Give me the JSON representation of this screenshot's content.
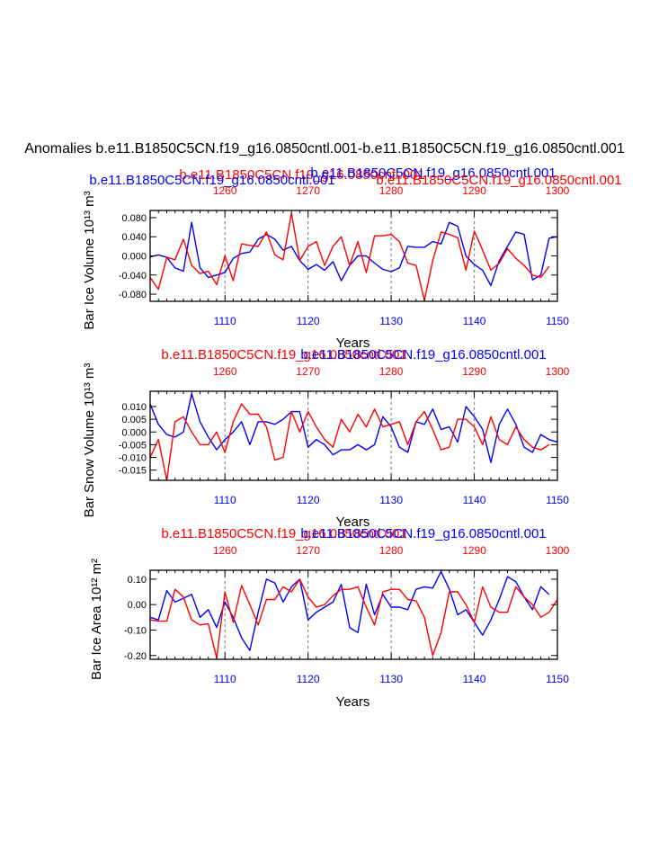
{
  "figure": {
    "title": "Anomalies b.e11.B1850C5CN.f19_g16.0850cntl.001-b.e11.B1850C5CN.f19_g16.0850cntl.001",
    "colors": {
      "blue": "#0000ff",
      "red": "#ff0000",
      "text": "#000000",
      "grid": "#888888"
    }
  },
  "chart_data": [
    {
      "type": "line",
      "title_blue": "b.e11.B1850C5CN.f19_g16.0850cntl.001",
      "title_red": "b.e11.B1850C5CN.f19_g16.0850cntl.001",
      "title_red_2": "b.e11.B1850C5CN.f19_g16.0850cntl.001",
      "overlap_red": "b.e11.B1850C5CN.f19_g16.0850cntl.001",
      "overlap_blue": "b.e11.B1850C5CN.f19_g16.0850cntl.001",
      "ylabel": "Bar Ice Volume 10¹³ m³",
      "xlabel": "Years",
      "ylim": [
        -0.095,
        0.095
      ],
      "yticks": [
        -0.08,
        -0.04,
        0.0,
        0.04,
        0.08
      ],
      "ytick_labels": [
        "-0.080",
        "-0.040",
        "0.000",
        "0.040",
        "0.080"
      ],
      "x_bottom": {
        "range": [
          1101,
          1150
        ],
        "ticks": [
          1110,
          1120,
          1130,
          1140,
          1150
        ],
        "labels": [
          "1110",
          "1120",
          "1130",
          "1140",
          "1150"
        ]
      },
      "x_top": {
        "range": [
          1251,
          1300
        ],
        "ticks": [
          1260,
          1270,
          1280,
          1290,
          1300
        ],
        "labels": [
          "1260",
          "1270",
          "1280",
          "1290",
          "1300"
        ]
      },
      "series": [
        {
          "color": "blue",
          "axis": "bottom",
          "values": [
            -0.002,
            0.002,
            -0.003,
            -0.025,
            -0.032,
            0.07,
            -0.025,
            -0.045,
            -0.04,
            -0.035,
            -0.005,
            0.005,
            0.008,
            0.035,
            0.045,
            0.035,
            0.012,
            0.02,
            -0.01,
            -0.028,
            -0.018,
            -0.03,
            -0.012,
            -0.052,
            -0.02,
            0.0,
            0.0,
            -0.015,
            -0.028,
            -0.033,
            -0.025,
            0.02,
            0.018,
            0.018,
            0.03,
            0.025,
            0.07,
            0.062,
            0.0,
            -0.018,
            -0.03,
            -0.062,
            -0.01,
            0.02,
            0.05,
            0.045,
            -0.05,
            -0.04,
            0.037,
            0.04
          ]
        },
        {
          "color": "red",
          "axis": "top",
          "values": [
            -0.045,
            -0.07,
            -0.003,
            -0.008,
            0.035,
            -0.02,
            -0.037,
            -0.032,
            -0.06,
            0.0,
            -0.052,
            0.025,
            0.022,
            0.02,
            0.05,
            0.002,
            -0.008,
            0.09,
            -0.01,
            0.02,
            0.03,
            -0.02,
            0.02,
            0.04,
            -0.02,
            0.03,
            -0.035,
            0.042,
            0.042,
            0.045,
            0.03,
            -0.015,
            -0.02,
            -0.093,
            -0.01,
            0.05,
            0.045,
            0.038,
            -0.03,
            0.052,
            0.012,
            -0.03,
            -0.015,
            0.015,
            -0.005,
            -0.02,
            -0.04,
            -0.045,
            -0.022
          ]
        }
      ]
    },
    {
      "type": "line",
      "title_red": "b.e11.B1850C5CN.f19_g16.0850cntl.001",
      "title_blue": "b.e11.B1850C5CN.f19_g16.0850cntl.001",
      "ylabel": "Bar Snow Volume 10¹³ m³",
      "xlabel": "Years",
      "ylim": [
        -0.019,
        0.016
      ],
      "yticks": [
        -0.015,
        -0.01,
        -0.005,
        0.0,
        0.005,
        0.01
      ],
      "ytick_labels": [
        "-0.015",
        "-0.010",
        "-0.005",
        "0.000",
        "0.005",
        "0.010"
      ],
      "x_bottom": {
        "range": [
          1101,
          1150
        ],
        "ticks": [
          1110,
          1120,
          1130,
          1140,
          1150
        ],
        "labels": [
          "1110",
          "1120",
          "1130",
          "1140",
          "1150"
        ]
      },
      "x_top": {
        "range": [
          1251,
          1300
        ],
        "ticks": [
          1260,
          1270,
          1280,
          1290,
          1300
        ],
        "labels": [
          "1260",
          "1270",
          "1280",
          "1290",
          "1300"
        ]
      },
      "series": [
        {
          "color": "blue",
          "axis": "bottom",
          "values": [
            0.011,
            0.003,
            -0.001,
            -0.002,
            0.0,
            0.015,
            0.004,
            -0.002,
            -0.007,
            -0.003,
            0.0,
            0.004,
            -0.005,
            0.004,
            0.004,
            0.003,
            0.005,
            0.008,
            0.008,
            -0.006,
            -0.003,
            -0.005,
            -0.009,
            -0.007,
            -0.007,
            -0.005,
            -0.007,
            -0.005,
            0.006,
            0.002,
            -0.006,
            -0.008,
            0.004,
            0.003,
            0.009,
            0.001,
            0.002,
            -0.004,
            0.01,
            0.006,
            0.001,
            -0.012,
            0.003,
            0.009,
            0.003,
            -0.006,
            -0.008,
            -0.001,
            -0.003,
            -0.004
          ]
        },
        {
          "color": "red",
          "axis": "top",
          "values": [
            -0.01,
            -0.003,
            -0.019,
            0.004,
            0.006,
            0.0,
            -0.005,
            -0.005,
            0.0,
            -0.008,
            0.004,
            0.011,
            0.007,
            0.007,
            0.002,
            -0.011,
            -0.01,
            0.008,
            0.0,
            0.008,
            0.002,
            -0.003,
            -0.006,
            0.005,
            0.0,
            0.007,
            0.002,
            0.009,
            0.002,
            0.003,
            0.004,
            -0.005,
            0.004,
            0.008,
            0.001,
            -0.007,
            -0.006,
            0.005,
            0.005,
            0.002,
            -0.005,
            0.006,
            -0.003,
            -0.005,
            0.002,
            -0.003,
            -0.006,
            -0.007,
            -0.005
          ]
        }
      ]
    },
    {
      "type": "line",
      "title_red": "b.e11.B1850C5CN.f19_g16.0850cntl.001",
      "title_blue": "b.e11.B1850C5CN.f19_g16.0850cntl.001",
      "ylabel": "Bar Ice Area 10¹² m²",
      "xlabel": "Years",
      "ylim": [
        -0.215,
        0.135
      ],
      "yticks": [
        -0.2,
        -0.1,
        0.0,
        0.1
      ],
      "ytick_labels": [
        "-0.20",
        "-0.10",
        "0.00",
        "0.10"
      ],
      "x_bottom": {
        "range": [
          1101,
          1150
        ],
        "ticks": [
          1110,
          1120,
          1130,
          1140,
          1150
        ],
        "labels": [
          "1110",
          "1120",
          "1130",
          "1140",
          "1150"
        ]
      },
      "x_top": {
        "range": [
          1251,
          1300
        ],
        "ticks": [
          1260,
          1270,
          1280,
          1290,
          1300
        ],
        "labels": [
          "1260",
          "1270",
          "1280",
          "1290",
          "1300"
        ]
      },
      "series": [
        {
          "color": "blue",
          "axis": "bottom",
          "values": [
            -0.05,
            -0.06,
            0.055,
            0.01,
            0.025,
            0.04,
            -0.05,
            -0.02,
            -0.09,
            0.01,
            -0.05,
            -0.13,
            -0.18,
            -0.03,
            0.1,
            0.085,
            0.01,
            0.07,
            0.1,
            -0.06,
            -0.03,
            -0.01,
            0.01,
            0.08,
            -0.09,
            -0.11,
            0.08,
            -0.04,
            0.04,
            -0.01,
            -0.01,
            -0.02,
            0.06,
            0.07,
            0.065,
            0.13,
            0.06,
            -0.04,
            -0.02,
            -0.07,
            -0.12,
            -0.06,
            0.02,
            0.11,
            0.09,
            0.03,
            -0.02,
            0.07,
            0.04
          ]
        },
        {
          "color": "red",
          "axis": "top",
          "values": [
            -0.06,
            -0.065,
            -0.065,
            0.06,
            0.03,
            -0.06,
            -0.08,
            -0.075,
            -0.21,
            0.05,
            -0.07,
            0.075,
            0.0,
            -0.08,
            0.02,
            0.02,
            0.07,
            0.05,
            0.1,
            0.03,
            -0.01,
            0.0,
            0.035,
            0.06,
            0.06,
            0.07,
            -0.01,
            -0.08,
            0.05,
            0.06,
            0.06,
            0.02,
            0.015,
            -0.05,
            -0.2,
            -0.11,
            0.05,
            0.05,
            0.0,
            -0.07,
            0.07,
            -0.01,
            -0.03,
            -0.03,
            0.07,
            0.03,
            0.0,
            -0.05,
            -0.03,
            0.02
          ]
        }
      ]
    }
  ]
}
